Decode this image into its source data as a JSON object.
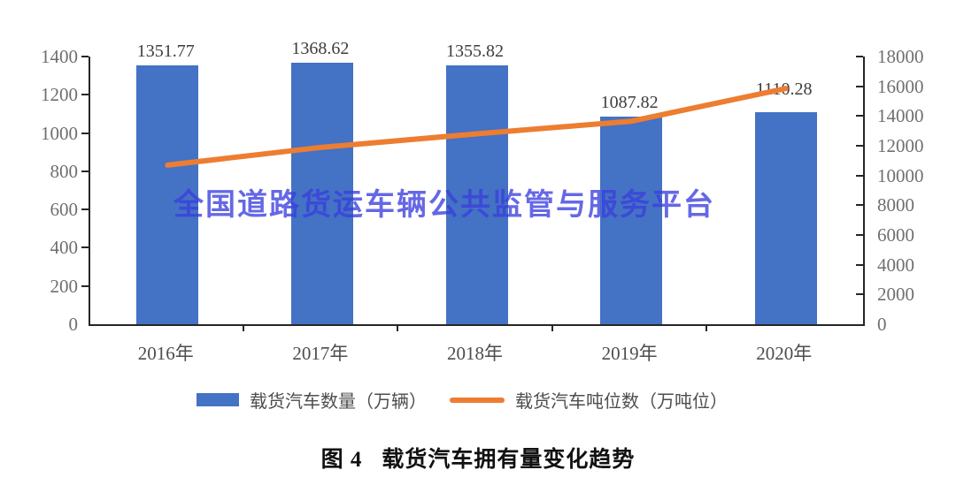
{
  "chart_data": {
    "type": "bar",
    "subtype": "bar+line-combo",
    "categories": [
      "2016年",
      "2017年",
      "2018年",
      "2019年",
      "2020年"
    ],
    "series": [
      {
        "name": "载货汽车数量（万辆）",
        "render": "bar",
        "axis": "left",
        "color": "#4472C4",
        "values": [
          1351.77,
          1368.62,
          1355.82,
          1087.82,
          1110.28
        ],
        "data_labels": [
          "1351.77",
          "1368.62",
          "1355.82",
          "1087.82",
          "1110.28"
        ]
      },
      {
        "name": "载货汽车吨位数（万吨位）",
        "render": "line",
        "axis": "right",
        "color": "#ED7D31",
        "values": [
          10700,
          11900,
          12800,
          13650,
          15850
        ]
      }
    ],
    "left_axis": {
      "min": 0,
      "max": 1400,
      "step": 200,
      "tick_labels": [
        "0",
        "200",
        "400",
        "600",
        "800",
        "1000",
        "1200",
        "1400"
      ]
    },
    "right_axis": {
      "min": 0,
      "max": 18000,
      "step": 2000,
      "tick_labels": [
        "0",
        "2000",
        "4000",
        "6000",
        "8000",
        "10000",
        "12000",
        "14000",
        "16000",
        "18000"
      ]
    },
    "grid": false,
    "legend_position": "bottom",
    "title": "图 4  载货汽车拥有量变化趋势"
  },
  "watermark": {
    "text": "全国道路货运车辆公共监管与服务平台",
    "color": "#3A3EDE"
  },
  "legend": {
    "bar_label": "载货汽车数量（万辆）",
    "line_label": "载货汽车吨位数（万吨位）"
  },
  "caption": {
    "prefix": "图 4",
    "title": "载货汽车拥有量变化趋势"
  },
  "colors": {
    "bar": "#4472C4",
    "line": "#ED7D31",
    "axis": "#262626",
    "axis_tick_text": "#6f6f6f",
    "category_text": "#4d4d4d",
    "data_label_text": "#3d3d3d"
  }
}
